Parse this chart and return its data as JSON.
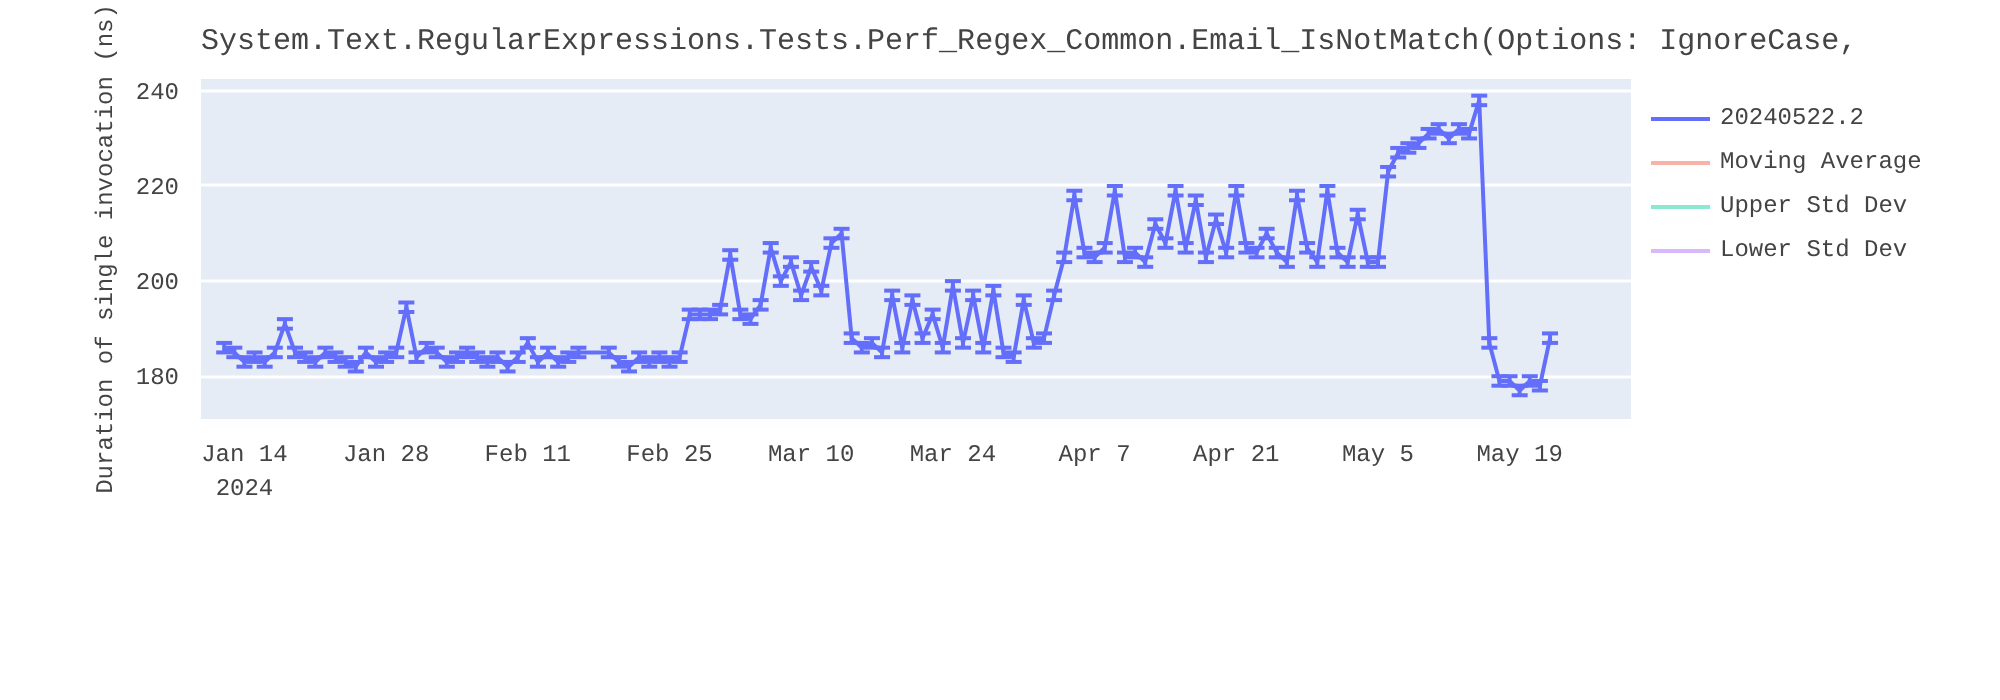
{
  "chart_data": {
    "type": "line",
    "title": "System.Text.RegularExpressions.Tests.Perf_Regex_Common.Email_IsNotMatch(Options: IgnoreCase,",
    "ylabel": "Duration of single invocation (ns)",
    "xlim": [
      "2024-01-09T17:00",
      "2024-05-30"
    ],
    "xticks": [
      {
        "value": "2024-01-14",
        "label": "Jan 14\n2024"
      },
      {
        "value": "2024-01-28",
        "label": "Jan 28"
      },
      {
        "value": "2024-02-11",
        "label": "Feb 11"
      },
      {
        "value": "2024-02-25",
        "label": "Feb 25"
      },
      {
        "value": "2024-03-10",
        "label": "Mar 10"
      },
      {
        "value": "2024-03-24",
        "label": "Mar 24"
      },
      {
        "value": "2024-04-07",
        "label": "Apr 7"
      },
      {
        "value": "2024-04-21",
        "label": "Apr 21"
      },
      {
        "value": "2024-05-05",
        "label": "May 5"
      },
      {
        "value": "2024-05-19",
        "label": "May 19"
      }
    ],
    "ylim": [
      171,
      242.5
    ],
    "yticks": [
      180,
      200,
      220,
      240
    ],
    "grid": true,
    "legend": "right",
    "marker": "none",
    "line_style": "solid",
    "x": [
      "2024-01-12",
      "2024-01-13",
      "2024-01-14",
      "2024-01-15",
      "2024-01-16",
      "2024-01-17",
      "2024-01-18",
      "2024-01-19",
      "2024-01-20",
      "2024-01-21",
      "2024-01-22",
      "2024-01-23",
      "2024-01-24",
      "2024-01-25",
      "2024-01-26",
      "2024-01-27",
      "2024-01-28",
      "2024-01-29",
      "2024-01-30",
      "2024-01-31",
      "2024-02-01",
      "2024-02-02",
      "2024-02-03",
      "2024-02-04",
      "2024-02-05",
      "2024-02-06",
      "2024-02-07",
      "2024-02-08",
      "2024-02-09",
      "2024-02-10",
      "2024-02-11",
      "2024-02-12",
      "2024-02-13",
      "2024-02-14",
      "2024-02-15",
      "2024-02-16",
      "2024-02-19",
      "2024-02-20",
      "2024-02-21",
      "2024-02-22",
      "2024-02-23",
      "2024-02-24",
      "2024-02-25",
      "2024-02-26",
      "2024-02-27",
      "2024-02-28",
      "2024-02-29",
      "2024-03-01",
      "2024-03-02",
      "2024-03-03",
      "2024-03-04",
      "2024-03-05",
      "2024-03-06",
      "2024-03-07",
      "2024-03-08",
      "2024-03-09",
      "2024-03-10",
      "2024-03-11",
      "2024-03-12",
      "2024-03-13",
      "2024-03-14",
      "2024-03-15",
      "2024-03-16",
      "2024-03-17",
      "2024-03-18",
      "2024-03-19",
      "2024-03-20",
      "2024-03-21",
      "2024-03-22",
      "2024-03-23",
      "2024-03-24",
      "2024-03-25",
      "2024-03-26",
      "2024-03-27",
      "2024-03-28",
      "2024-03-29",
      "2024-03-30",
      "2024-03-31",
      "2024-04-01",
      "2024-04-02",
      "2024-04-03",
      "2024-04-04",
      "2024-04-05",
      "2024-04-06",
      "2024-04-07",
      "2024-04-08",
      "2024-04-09",
      "2024-04-10",
      "2024-04-11",
      "2024-04-12",
      "2024-04-13",
      "2024-04-14",
      "2024-04-15",
      "2024-04-16",
      "2024-04-17",
      "2024-04-18",
      "2024-04-19",
      "2024-04-20",
      "2024-04-21",
      "2024-04-22",
      "2024-04-23",
      "2024-04-24",
      "2024-04-25",
      "2024-04-26",
      "2024-04-27",
      "2024-04-28",
      "2024-04-29",
      "2024-04-30",
      "2024-05-01",
      "2024-05-02",
      "2024-05-03",
      "2024-05-04",
      "2024-05-05",
      "2024-05-06",
      "2024-05-07",
      "2024-05-08",
      "2024-05-09",
      "2024-05-10",
      "2024-05-11",
      "2024-05-12",
      "2024-05-13",
      "2024-05-14",
      "2024-05-15",
      "2024-05-16",
      "2024-05-17",
      "2024-05-18",
      "2024-05-19",
      "2024-05-20",
      "2024-05-21",
      "2024-05-22"
    ],
    "series": [
      {
        "name": "20240522.2",
        "color": "#636efa",
        "values": [
          186,
          185,
          183,
          184,
          183,
          185,
          191,
          185,
          184,
          183,
          185,
          184,
          183,
          182,
          185,
          183,
          184,
          185,
          194.5,
          184,
          186,
          185,
          183,
          184,
          185,
          184,
          183,
          184,
          182,
          184,
          187,
          183,
          185,
          183,
          184,
          185,
          185,
          183,
          182,
          184,
          183,
          184,
          183,
          184,
          193,
          193,
          193,
          194,
          205.5,
          193,
          192,
          195,
          207,
          200,
          204,
          197,
          203,
          198,
          208,
          210,
          188,
          186,
          187,
          185,
          197,
          186,
          196,
          188,
          193,
          186,
          199,
          187,
          197,
          186,
          198,
          185,
          184,
          196,
          187,
          188,
          197,
          205,
          218,
          206,
          205,
          207,
          219,
          205,
          206,
          204,
          212,
          208,
          219,
          207,
          217,
          205,
          213,
          206,
          219,
          207,
          206,
          210,
          206,
          204,
          218,
          207,
          204,
          219,
          206,
          204,
          214,
          204,
          204,
          223,
          227,
          228,
          229,
          231,
          232,
          230,
          232,
          231,
          238,
          187,
          179,
          179,
          177,
          179,
          178,
          188
        ],
        "errors": [
          1,
          1,
          1,
          1,
          1,
          1,
          1,
          1,
          1,
          1,
          1,
          1,
          1,
          1,
          1,
          1,
          1,
          1,
          1,
          1,
          1,
          1,
          1,
          1,
          1,
          1,
          1,
          1,
          1,
          1,
          1,
          1,
          1,
          1,
          1,
          1,
          1,
          1,
          1,
          1,
          1,
          1,
          1,
          1,
          1,
          1,
          1,
          1,
          1,
          1,
          1,
          1,
          1,
          1,
          1,
          1,
          1,
          1,
          1,
          1,
          1,
          1,
          1,
          1,
          1,
          1,
          1,
          1,
          1,
          1,
          1,
          1,
          1,
          1,
          1,
          1,
          1,
          1,
          1,
          1,
          1,
          1,
          1,
          1,
          1,
          1,
          1,
          1,
          1,
          1,
          1,
          1,
          1,
          1,
          1,
          1,
          1,
          1,
          1,
          1,
          1,
          1,
          1,
          1,
          1,
          1,
          1,
          1,
          1,
          1,
          1,
          1,
          1,
          1,
          1,
          1,
          1,
          1,
          1,
          1,
          1,
          1,
          1,
          1,
          1,
          1,
          1,
          1,
          1,
          1
        ]
      },
      {
        "name": "Moving Average",
        "color": "#ef553b",
        "values": [
          null,
          null,
          null,
          null,
          null,
          null,
          null,
          null,
          null,
          null,
          null,
          null,
          null,
          null,
          null,
          null,
          null,
          null,
          null,
          null,
          null,
          null,
          null,
          null,
          null,
          null,
          null,
          null,
          null,
          null,
          null,
          null,
          null,
          null,
          null,
          null,
          null,
          null,
          null,
          null,
          null,
          null,
          null,
          null,
          null,
          null,
          null,
          null,
          null,
          null,
          null,
          null,
          null,
          null,
          null,
          null,
          null,
          null,
          null,
          null,
          null,
          null,
          null,
          null,
          null,
          null,
          null,
          null,
          null,
          null,
          null,
          null,
          null,
          null,
          null,
          null,
          null,
          null,
          null,
          null,
          null,
          null,
          null,
          null,
          null,
          null,
          null,
          null,
          null,
          null,
          null,
          null,
          null,
          null,
          null,
          null,
          null,
          null,
          null,
          null,
          null,
          null,
          null,
          null,
          null,
          null,
          null,
          null,
          null,
          null,
          null,
          null,
          null,
          null,
          null,
          null,
          null,
          null,
          null,
          null,
          null,
          null,
          null,
          null,
          null,
          null,
          null,
          null,
          null,
          null
        ]
      },
      {
        "name": "Upper Std Dev",
        "color": "#00cc96",
        "values": [
          null,
          null,
          null,
          null,
          null,
          null,
          null,
          null,
          null,
          null,
          null,
          null,
          null,
          null,
          null,
          null,
          null,
          null,
          null,
          null,
          null,
          null,
          null,
          null,
          null,
          null,
          null,
          null,
          null,
          null,
          null,
          null,
          null,
          null,
          null,
          null,
          null,
          null,
          null,
          null,
          null,
          null,
          null,
          null,
          null,
          null,
          null,
          null,
          null,
          null,
          null,
          null,
          null,
          null,
          null,
          null,
          null,
          null,
          null,
          null,
          null,
          null,
          null,
          null,
          null,
          null,
          null,
          null,
          null,
          null,
          null,
          null,
          null,
          null,
          null,
          null,
          null,
          null,
          null,
          null,
          null,
          null,
          null,
          null,
          null,
          null,
          null,
          null,
          null,
          null,
          null,
          null,
          null,
          null,
          null,
          null,
          null,
          null,
          null,
          null,
          null,
          null,
          null,
          null,
          null,
          null,
          null,
          null,
          null,
          null,
          null,
          null,
          null,
          null,
          null,
          null,
          null,
          null,
          null,
          null,
          null,
          null,
          null,
          null,
          null,
          null,
          null,
          null,
          null,
          null
        ]
      },
      {
        "name": "Lower Std Dev",
        "color": "#ab63fa",
        "values": [
          null,
          null,
          null,
          null,
          null,
          null,
          null,
          null,
          null,
          null,
          null,
          null,
          null,
          null,
          null,
          null,
          null,
          null,
          null,
          null,
          null,
          null,
          null,
          null,
          null,
          null,
          null,
          null,
          null,
          null,
          null,
          null,
          null,
          null,
          null,
          null,
          null,
          null,
          null,
          null,
          null,
          null,
          null,
          null,
          null,
          null,
          null,
          null,
          null,
          null,
          null,
          null,
          null,
          null,
          null,
          null,
          null,
          null,
          null,
          null,
          null,
          null,
          null,
          null,
          null,
          null,
          null,
          null,
          null,
          null,
          null,
          null,
          null,
          null,
          null,
          null,
          null,
          null,
          null,
          null,
          null,
          null,
          null,
          null,
          null,
          null,
          null,
          null,
          null,
          null,
          null,
          null,
          null,
          null,
          null,
          null,
          null,
          null,
          null,
          null,
          null,
          null,
          null,
          null,
          null,
          null,
          null,
          null,
          null,
          null,
          null,
          null,
          null,
          null,
          null,
          null,
          null,
          null,
          null,
          null,
          null,
          null,
          null,
          null,
          null,
          null,
          null,
          null,
          null,
          null
        ]
      }
    ]
  }
}
